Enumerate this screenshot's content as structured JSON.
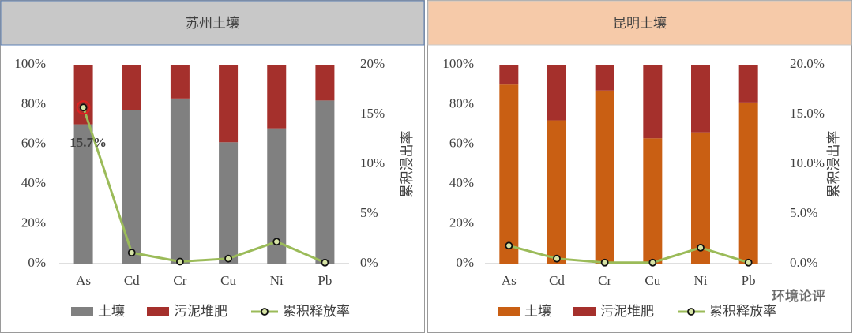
{
  "chart_data": [
    {
      "type": "combo",
      "title": "苏州土壤",
      "header_color": "#c8c8c8",
      "categories": [
        "As",
        "Cd",
        "Cr",
        "Cu",
        "Ni",
        "Pb"
      ],
      "series": [
        {
          "name": "土壤",
          "color": "#808080",
          "values": [
            70,
            77,
            83,
            61,
            68,
            82
          ]
        },
        {
          "name": "污泥堆肥",
          "color": "#a5302c",
          "values": [
            30,
            23,
            17,
            39,
            32,
            18
          ]
        },
        {
          "name": "累积释放率",
          "color": "#9bbb59",
          "axis": "y2",
          "values": [
            15.7,
            1.1,
            0.2,
            0.5,
            2.2,
            0.1
          ]
        }
      ],
      "ylim": [
        0,
        100
      ],
      "yticks": [
        {
          "value": 0,
          "label": "0%"
        },
        {
          "value": 20,
          "label": "20%"
        },
        {
          "value": 40,
          "label": "40%"
        },
        {
          "value": 60,
          "label": "60%"
        },
        {
          "value": 80,
          "label": "80%"
        },
        {
          "value": 100,
          "label": "100%"
        }
      ],
      "y2lim": [
        0,
        20
      ],
      "y2ticks": [
        {
          "value": 0,
          "label": "0%"
        },
        {
          "value": 5,
          "label": "5%"
        },
        {
          "value": 10,
          "label": "10%"
        },
        {
          "value": 15,
          "label": "15%"
        },
        {
          "value": 20,
          "label": "20%"
        }
      ],
      "y2label": "累积浸出率",
      "annotation": "15.7%"
    },
    {
      "type": "combo",
      "title": "昆明土壤",
      "header_color": "#f6caa9",
      "categories": [
        "As",
        "Cd",
        "Cr",
        "Cu",
        "Ni",
        "Pb"
      ],
      "series": [
        {
          "name": "土壤",
          "color": "#c95f13",
          "values": [
            90,
            72,
            87,
            63,
            66,
            81
          ]
        },
        {
          "name": "污泥堆肥",
          "color": "#a5302c",
          "values": [
            10,
            28,
            13,
            37,
            34,
            19
          ]
        },
        {
          "name": "累积释放率",
          "color": "#9bbb59",
          "axis": "y2",
          "values": [
            1.8,
            0.5,
            0.1,
            0.1,
            1.6,
            0.1
          ]
        }
      ],
      "ylim": [
        0,
        100
      ],
      "yticks": [
        {
          "value": 0,
          "label": "0%"
        },
        {
          "value": 20,
          "label": "20%"
        },
        {
          "value": 40,
          "label": "40%"
        },
        {
          "value": 60,
          "label": "60%"
        },
        {
          "value": 80,
          "label": "80%"
        },
        {
          "value": 100,
          "label": "100%"
        }
      ],
      "y2lim": [
        0,
        20
      ],
      "y2ticks": [
        {
          "value": 0,
          "label": "0.0%"
        },
        {
          "value": 5,
          "label": "5.0%"
        },
        {
          "value": 10,
          "label": "10.0%"
        },
        {
          "value": 15,
          "label": "15.0%"
        },
        {
          "value": 20,
          "label": "20.0%"
        }
      ],
      "y2label": "累积浸出率",
      "watermark": "环境论评"
    }
  ]
}
